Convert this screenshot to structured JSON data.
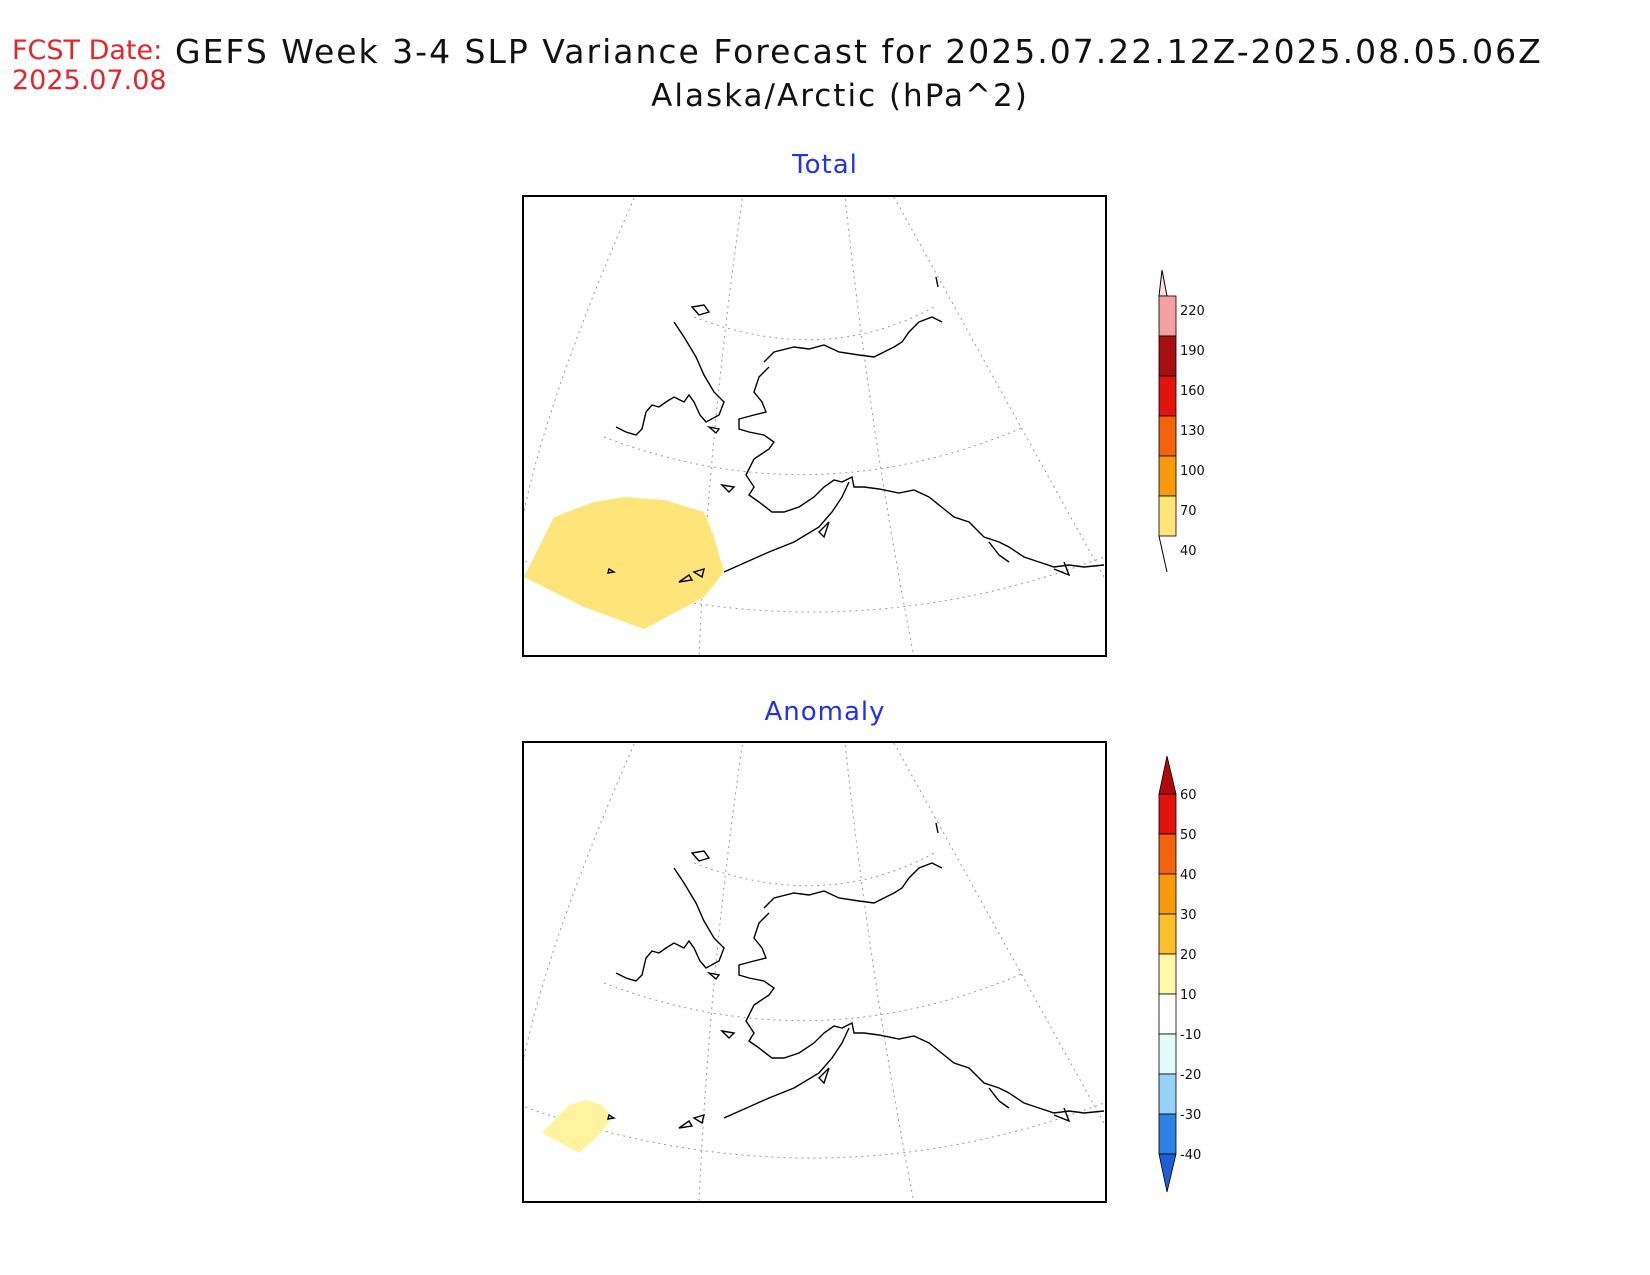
{
  "header": {
    "fcst_label": "FCST Date:",
    "fcst_date": "2025.07.08",
    "title": "GEFS Week 3-4 SLP Variance Forecast for 2025.07.22.12Z-2025.08.05.06Z",
    "subtitle": "Alaska/Arctic (hPa^2)"
  },
  "panels": [
    {
      "title": "Total",
      "colorbar": {
        "labels": [
          "220",
          "190",
          "160",
          "130",
          "100",
          "70",
          "40"
        ],
        "colors": [
          "#fde0dc",
          "#f4a0a0",
          "#a50f0f",
          "#e0140c",
          "#f4620c",
          "#f99a0c",
          "#ffe47a"
        ]
      },
      "shaded_region_color": "#ffe47a"
    },
    {
      "title": "Anomaly",
      "colorbar": {
        "labels": [
          "60",
          "50",
          "40",
          "30",
          "20",
          "10",
          "-10",
          "-20",
          "-30",
          "-40"
        ],
        "colors": [
          "#b00a0a",
          "#e0140c",
          "#f4620c",
          "#f99a0c",
          "#fbbf2c",
          "#fff7a8",
          "#ffffff",
          "#e4fbfd",
          "#96d2f8",
          "#2e7fe6",
          "#1f5fd6"
        ]
      },
      "shaded_region_color": "#fff3a0"
    }
  ],
  "colors": {
    "fcst": "#e8242a",
    "panel_title": "#1f32f0",
    "coastline": "#000000",
    "graticule": "#9a9a9a"
  }
}
